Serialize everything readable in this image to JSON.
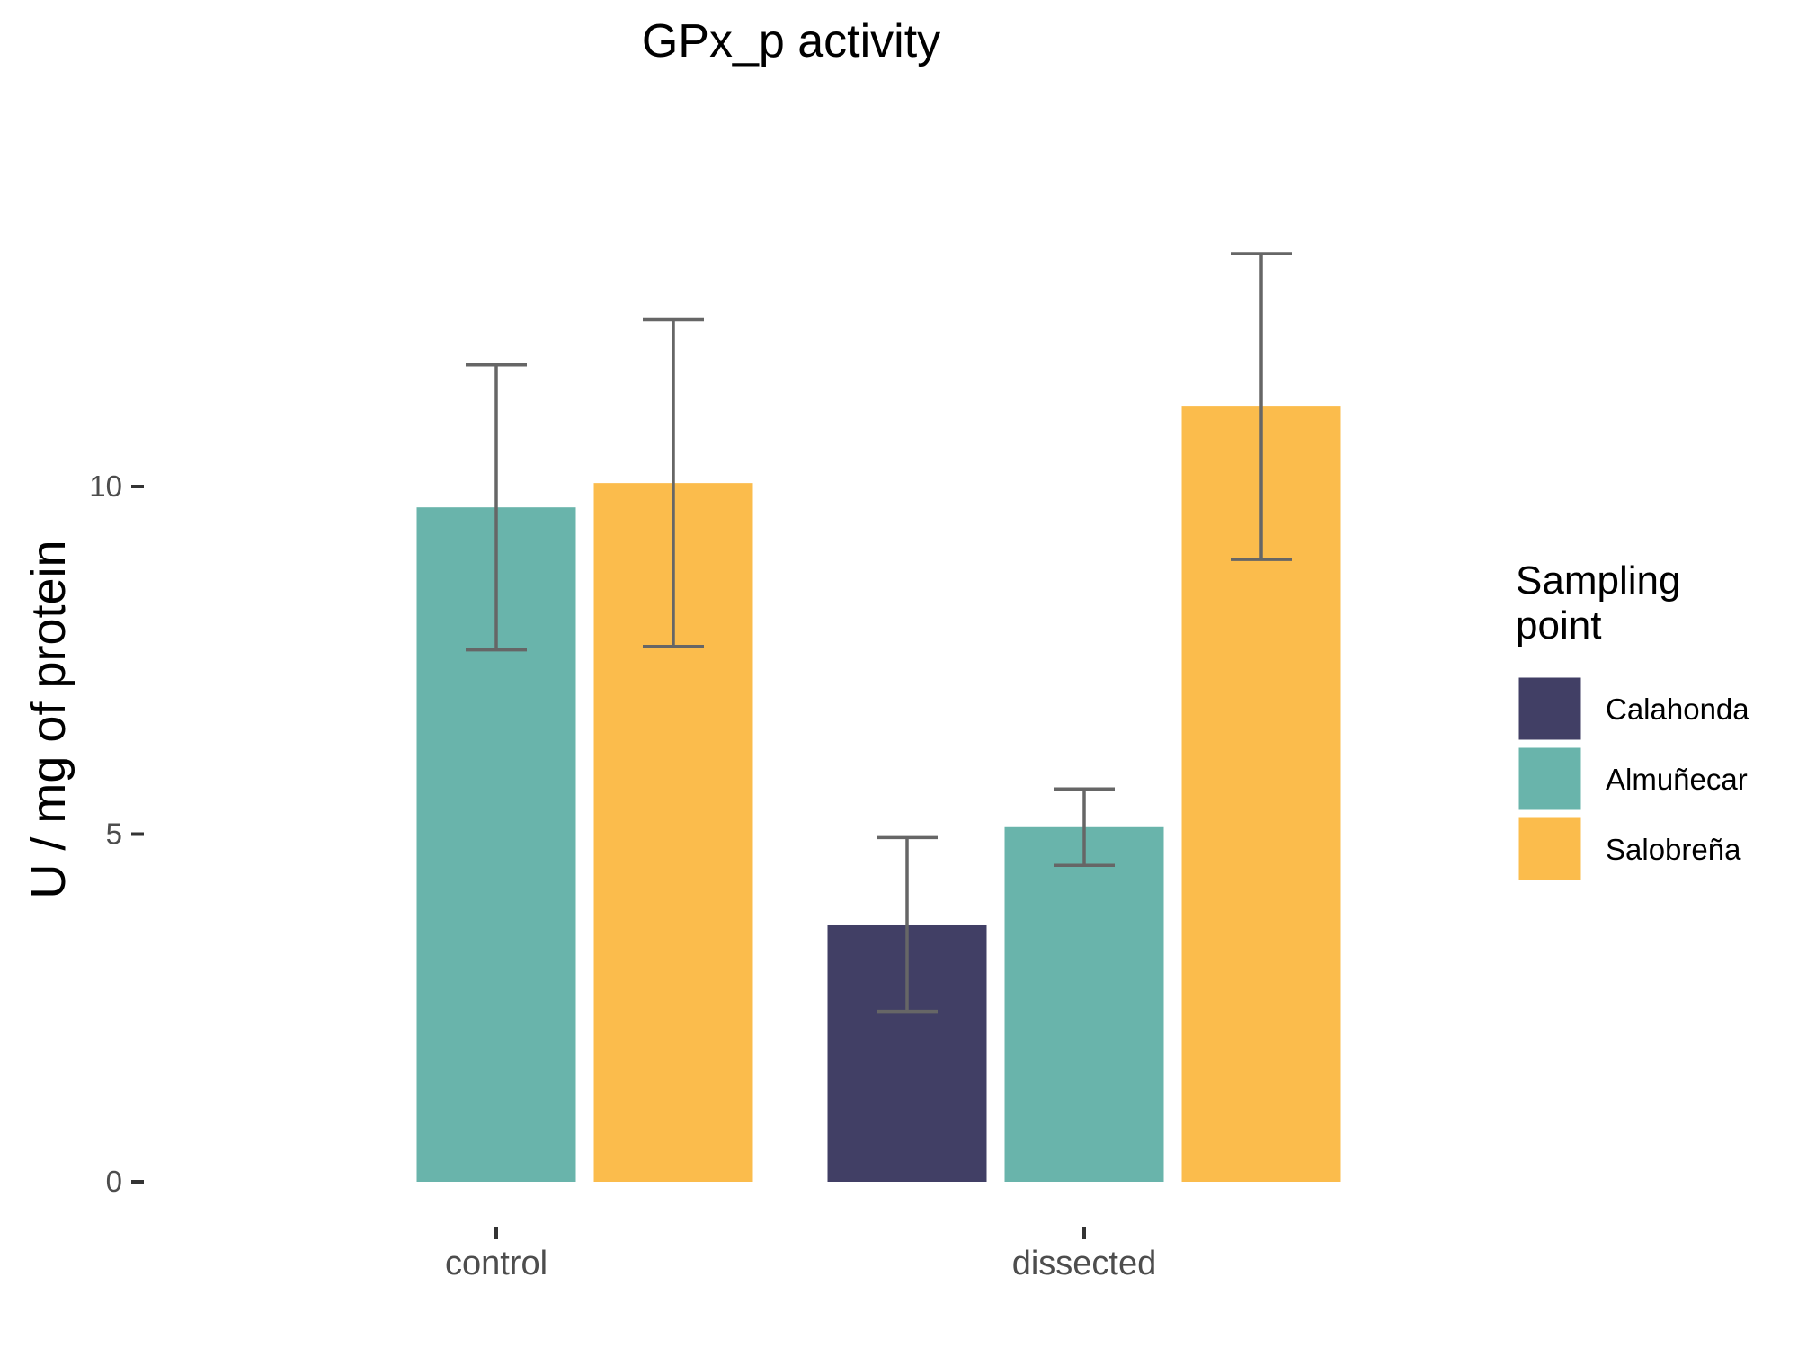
{
  "chart_data": {
    "type": "bar",
    "title": "GPx_p activity",
    "xlabel": "",
    "ylabel": "U / mg  of protein",
    "categories": [
      "control",
      "dissected"
    ],
    "ylim": [
      0,
      15
    ],
    "yticks": [
      0,
      5,
      10
    ],
    "legend_title_lines": [
      "Sampling",
      "point"
    ],
    "legend_position": "right",
    "grid": false,
    "series": [
      {
        "name": "Calahonda",
        "color": "#413F65",
        "values": [
          null,
          3.7
        ],
        "err": [
          null,
          1.25
        ]
      },
      {
        "name": "Almuñecar",
        "color": "#69B4AB",
        "values": [
          9.7,
          5.1
        ],
        "err": [
          2.05,
          0.55
        ]
      },
      {
        "name": "Salobreña",
        "color": "#FBBC4C",
        "values": [
          10.05,
          11.15
        ],
        "err": [
          2.35,
          2.2
        ]
      }
    ]
  }
}
